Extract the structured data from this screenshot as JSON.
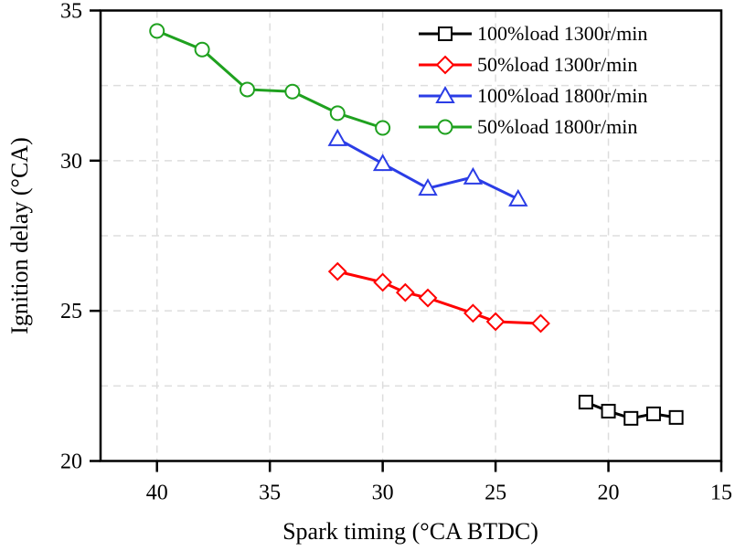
{
  "chart_data": {
    "type": "line",
    "title": "",
    "xlabel": "Spark timing (°CA BTDC)",
    "ylabel": "Ignition delay (°CA)",
    "xlim": [
      42.5,
      15
    ],
    "ylim": [
      20,
      35
    ],
    "xticks": [
      40,
      35,
      30,
      25,
      20,
      15
    ],
    "yticks": [
      20,
      25,
      30,
      35
    ],
    "grid": true,
    "legend_position": "top-right",
    "series": [
      {
        "name": "100%load 1300r/min",
        "color": "#000000",
        "marker": "square",
        "x": [
          21,
          20,
          19,
          18,
          17
        ],
        "y": [
          21.96,
          21.66,
          21.42,
          21.57,
          21.45
        ]
      },
      {
        "name": "50%load 1300r/min",
        "color": "#ff0000",
        "marker": "diamond",
        "x": [
          32,
          30,
          29,
          28,
          26,
          25,
          23
        ],
        "y": [
          26.31,
          25.95,
          25.61,
          25.43,
          24.92,
          24.64,
          24.58
        ]
      },
      {
        "name": "100%load 1800r/min",
        "color": "#2b3de6",
        "marker": "triangle",
        "x": [
          32,
          30,
          28,
          26,
          24
        ],
        "y": [
          30.73,
          29.9,
          29.08,
          29.45,
          28.72
        ]
      },
      {
        "name": "50%load 1800r/min",
        "color": "#1fa11f",
        "marker": "circle",
        "x": [
          40,
          38,
          36,
          34,
          32,
          30
        ],
        "y": [
          34.32,
          33.7,
          32.37,
          32.3,
          31.58,
          31.09
        ]
      }
    ]
  }
}
